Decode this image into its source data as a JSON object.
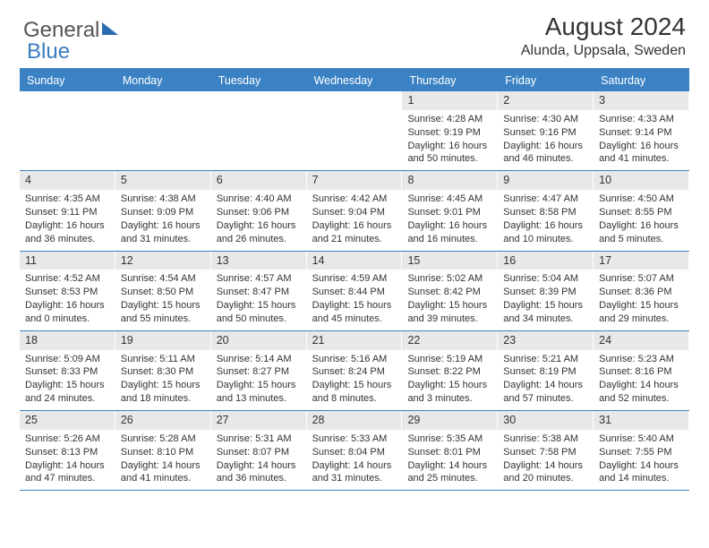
{
  "logo": {
    "part1": "General",
    "part2": "Blue"
  },
  "title": "August 2024",
  "location": "Alunda, Uppsala, Sweden",
  "colors": {
    "header_blue": "#3b82c4",
    "daybar_gray": "#e6e8ea",
    "text": "#333333",
    "logo_gray": "#555555",
    "logo_blue": "#3b7bbf"
  },
  "weekdays": [
    "Sunday",
    "Monday",
    "Tuesday",
    "Wednesday",
    "Thursday",
    "Friday",
    "Saturday"
  ],
  "weeks": [
    [
      {
        "empty": true
      },
      {
        "empty": true
      },
      {
        "empty": true
      },
      {
        "empty": true
      },
      {
        "day": "1",
        "sunrise": "Sunrise: 4:28 AM",
        "sunset": "Sunset: 9:19 PM",
        "daylight": "Daylight: 16 hours and 50 minutes."
      },
      {
        "day": "2",
        "sunrise": "Sunrise: 4:30 AM",
        "sunset": "Sunset: 9:16 PM",
        "daylight": "Daylight: 16 hours and 46 minutes."
      },
      {
        "day": "3",
        "sunrise": "Sunrise: 4:33 AM",
        "sunset": "Sunset: 9:14 PM",
        "daylight": "Daylight: 16 hours and 41 minutes."
      }
    ],
    [
      {
        "day": "4",
        "sunrise": "Sunrise: 4:35 AM",
        "sunset": "Sunset: 9:11 PM",
        "daylight": "Daylight: 16 hours and 36 minutes."
      },
      {
        "day": "5",
        "sunrise": "Sunrise: 4:38 AM",
        "sunset": "Sunset: 9:09 PM",
        "daylight": "Daylight: 16 hours and 31 minutes."
      },
      {
        "day": "6",
        "sunrise": "Sunrise: 4:40 AM",
        "sunset": "Sunset: 9:06 PM",
        "daylight": "Daylight: 16 hours and 26 minutes."
      },
      {
        "day": "7",
        "sunrise": "Sunrise: 4:42 AM",
        "sunset": "Sunset: 9:04 PM",
        "daylight": "Daylight: 16 hours and 21 minutes."
      },
      {
        "day": "8",
        "sunrise": "Sunrise: 4:45 AM",
        "sunset": "Sunset: 9:01 PM",
        "daylight": "Daylight: 16 hours and 16 minutes."
      },
      {
        "day": "9",
        "sunrise": "Sunrise: 4:47 AM",
        "sunset": "Sunset: 8:58 PM",
        "daylight": "Daylight: 16 hours and 10 minutes."
      },
      {
        "day": "10",
        "sunrise": "Sunrise: 4:50 AM",
        "sunset": "Sunset: 8:55 PM",
        "daylight": "Daylight: 16 hours and 5 minutes."
      }
    ],
    [
      {
        "day": "11",
        "sunrise": "Sunrise: 4:52 AM",
        "sunset": "Sunset: 8:53 PM",
        "daylight": "Daylight: 16 hours and 0 minutes."
      },
      {
        "day": "12",
        "sunrise": "Sunrise: 4:54 AM",
        "sunset": "Sunset: 8:50 PM",
        "daylight": "Daylight: 15 hours and 55 minutes."
      },
      {
        "day": "13",
        "sunrise": "Sunrise: 4:57 AM",
        "sunset": "Sunset: 8:47 PM",
        "daylight": "Daylight: 15 hours and 50 minutes."
      },
      {
        "day": "14",
        "sunrise": "Sunrise: 4:59 AM",
        "sunset": "Sunset: 8:44 PM",
        "daylight": "Daylight: 15 hours and 45 minutes."
      },
      {
        "day": "15",
        "sunrise": "Sunrise: 5:02 AM",
        "sunset": "Sunset: 8:42 PM",
        "daylight": "Daylight: 15 hours and 39 minutes."
      },
      {
        "day": "16",
        "sunrise": "Sunrise: 5:04 AM",
        "sunset": "Sunset: 8:39 PM",
        "daylight": "Daylight: 15 hours and 34 minutes."
      },
      {
        "day": "17",
        "sunrise": "Sunrise: 5:07 AM",
        "sunset": "Sunset: 8:36 PM",
        "daylight": "Daylight: 15 hours and 29 minutes."
      }
    ],
    [
      {
        "day": "18",
        "sunrise": "Sunrise: 5:09 AM",
        "sunset": "Sunset: 8:33 PM",
        "daylight": "Daylight: 15 hours and 24 minutes."
      },
      {
        "day": "19",
        "sunrise": "Sunrise: 5:11 AM",
        "sunset": "Sunset: 8:30 PM",
        "daylight": "Daylight: 15 hours and 18 minutes."
      },
      {
        "day": "20",
        "sunrise": "Sunrise: 5:14 AM",
        "sunset": "Sunset: 8:27 PM",
        "daylight": "Daylight: 15 hours and 13 minutes."
      },
      {
        "day": "21",
        "sunrise": "Sunrise: 5:16 AM",
        "sunset": "Sunset: 8:24 PM",
        "daylight": "Daylight: 15 hours and 8 minutes."
      },
      {
        "day": "22",
        "sunrise": "Sunrise: 5:19 AM",
        "sunset": "Sunset: 8:22 PM",
        "daylight": "Daylight: 15 hours and 3 minutes."
      },
      {
        "day": "23",
        "sunrise": "Sunrise: 5:21 AM",
        "sunset": "Sunset: 8:19 PM",
        "daylight": "Daylight: 14 hours and 57 minutes."
      },
      {
        "day": "24",
        "sunrise": "Sunrise: 5:23 AM",
        "sunset": "Sunset: 8:16 PM",
        "daylight": "Daylight: 14 hours and 52 minutes."
      }
    ],
    [
      {
        "day": "25",
        "sunrise": "Sunrise: 5:26 AM",
        "sunset": "Sunset: 8:13 PM",
        "daylight": "Daylight: 14 hours and 47 minutes."
      },
      {
        "day": "26",
        "sunrise": "Sunrise: 5:28 AM",
        "sunset": "Sunset: 8:10 PM",
        "daylight": "Daylight: 14 hours and 41 minutes."
      },
      {
        "day": "27",
        "sunrise": "Sunrise: 5:31 AM",
        "sunset": "Sunset: 8:07 PM",
        "daylight": "Daylight: 14 hours and 36 minutes."
      },
      {
        "day": "28",
        "sunrise": "Sunrise: 5:33 AM",
        "sunset": "Sunset: 8:04 PM",
        "daylight": "Daylight: 14 hours and 31 minutes."
      },
      {
        "day": "29",
        "sunrise": "Sunrise: 5:35 AM",
        "sunset": "Sunset: 8:01 PM",
        "daylight": "Daylight: 14 hours and 25 minutes."
      },
      {
        "day": "30",
        "sunrise": "Sunrise: 5:38 AM",
        "sunset": "Sunset: 7:58 PM",
        "daylight": "Daylight: 14 hours and 20 minutes."
      },
      {
        "day": "31",
        "sunrise": "Sunrise: 5:40 AM",
        "sunset": "Sunset: 7:55 PM",
        "daylight": "Daylight: 14 hours and 14 minutes."
      }
    ]
  ]
}
